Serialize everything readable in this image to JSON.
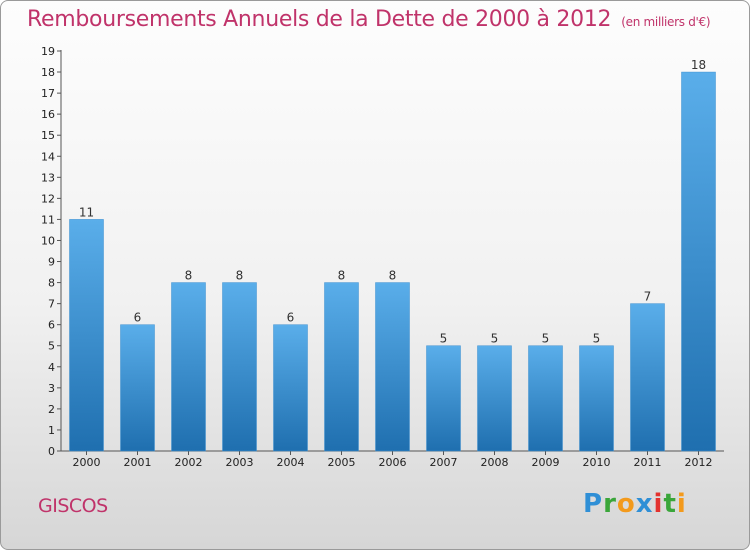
{
  "title": "Remboursements Annuels de la Dette de 2000 à 2012",
  "unit": "(en milliers d'€)",
  "commune": "GISCOS",
  "logo": {
    "letters": [
      "P",
      "r",
      "o",
      "x",
      "i",
      "t",
      "i"
    ]
  },
  "colors": {
    "title": "#c0336a",
    "bar_top": "#5aaeea",
    "bar_bottom": "#1f6faf"
  },
  "chart_data": {
    "type": "bar",
    "title": "Remboursements Annuels de la Dette de 2000 à 2012",
    "categories": [
      "2000",
      "2001",
      "2002",
      "2003",
      "2004",
      "2005",
      "2006",
      "2007",
      "2008",
      "2009",
      "2010",
      "2011",
      "2012"
    ],
    "values": [
      11,
      6,
      8,
      8,
      6,
      8,
      8,
      5,
      5,
      5,
      5,
      7,
      18
    ],
    "ylim": [
      0,
      19
    ],
    "yticks": [
      0,
      1,
      2,
      3,
      4,
      5,
      6,
      7,
      8,
      9,
      10,
      11,
      12,
      13,
      14,
      15,
      16,
      17,
      18,
      19
    ],
    "grid": false,
    "legend": "none"
  }
}
